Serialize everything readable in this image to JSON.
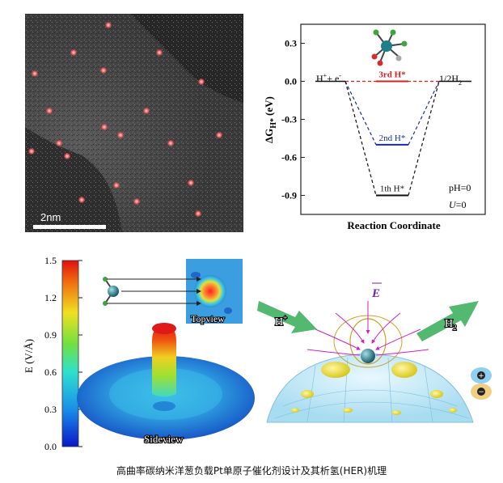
{
  "stem_image": {
    "scale_label": "2nm",
    "atom_count": 20
  },
  "energy_diagram": {
    "ylabel": "ΔG",
    "ylabel_sub": "H*",
    "ylabel_unit": "(eV)",
    "xlabel": "Reaction Coordinate",
    "yticks": [
      "0.3",
      "0.0",
      "-0.3",
      "-0.6",
      "-0.9"
    ],
    "reactant_label": "H",
    "reactant_sup": "+",
    "reactant_rest": "+ e",
    "reactant_sup2": "-",
    "product_label": "1/2H",
    "product_sub": "2",
    "levels": [
      {
        "label": "3rd H*",
        "value": 0.0,
        "color": "#d42020"
      },
      {
        "label": "2nd H*",
        "value": -0.5,
        "color": "#1a2aa8"
      },
      {
        "label": "1th H*",
        "value": -0.9,
        "color": "#111111"
      }
    ],
    "condition_ph": "pH=0",
    "condition_u_var": "U",
    "condition_u_val": "=0"
  },
  "field_panel": {
    "colorbar_label": "E (V/Å)",
    "colorbar_ticks": [
      "1.5",
      "1.2",
      "0.9",
      "0.6",
      "0.3",
      "0.0"
    ],
    "topview_label": "Topview",
    "sideview_label": "Sideview",
    "h_plus_label": "H",
    "h_plus_sup": "+",
    "h2_label": "H",
    "h2_sub": "2",
    "field_vector_label": "E",
    "plus_symbol": "+",
    "minus_symbol": "−"
  },
  "caption": "高曲率碳纳米洋葱负载Pt单原子催化剂设计及其析氢(HER)机理"
}
